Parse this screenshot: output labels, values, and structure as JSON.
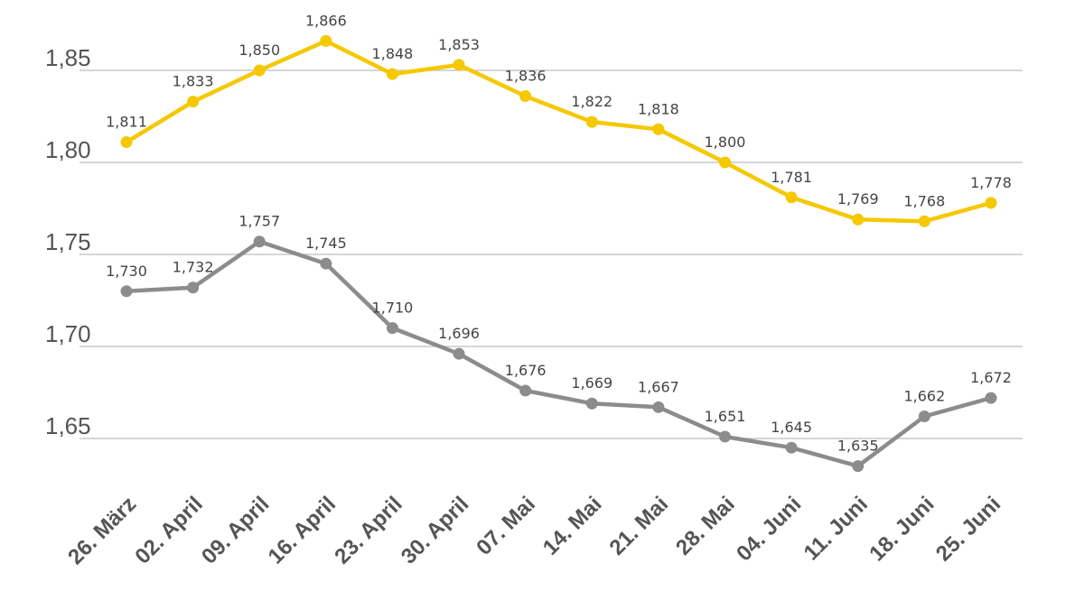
{
  "chart_data": {
    "type": "line",
    "title": "",
    "xlabel": "",
    "ylabel": "",
    "ylim": [
      1.6,
      1.87
    ],
    "yticks": [
      "1,65",
      "1,70",
      "1,75",
      "1,80",
      "1,85"
    ],
    "ytick_values": [
      1.65,
      1.7,
      1.75,
      1.8,
      1.85
    ],
    "grid": true,
    "categories": [
      "26. März",
      "02. April",
      "09. April",
      "16. April",
      "23. April",
      "30. April",
      "07. Mai",
      "14. Mai",
      "21. Mai",
      "28. Mai",
      "04. Juni",
      "11. Juni",
      "18. Juni",
      "25. Juni"
    ],
    "series": [
      {
        "name": "yellow",
        "color": "#f5c800",
        "values": [
          1.811,
          1.833,
          1.85,
          1.866,
          1.848,
          1.853,
          1.836,
          1.822,
          1.818,
          1.8,
          1.781,
          1.769,
          1.768,
          1.778
        ],
        "labels": [
          "1,811",
          "1,833",
          "1,850",
          "1,866",
          "1,848",
          "1,853",
          "1,836",
          "1,822",
          "1,818",
          "1,800",
          "1,781",
          "1,769",
          "1,768",
          "1,778"
        ]
      },
      {
        "name": "grey",
        "color": "#8c8c8c",
        "values": [
          1.73,
          1.732,
          1.757,
          1.745,
          1.71,
          1.696,
          1.676,
          1.669,
          1.667,
          1.651,
          1.645,
          1.635,
          1.662,
          1.672
        ],
        "labels": [
          "1,730",
          "1,732",
          "1,757",
          "1,745",
          "1,710",
          "1,696",
          "1,676",
          "1,669",
          "1,667",
          "1,651",
          "1,645",
          "1,635",
          "1,662",
          "1,672"
        ]
      }
    ]
  }
}
